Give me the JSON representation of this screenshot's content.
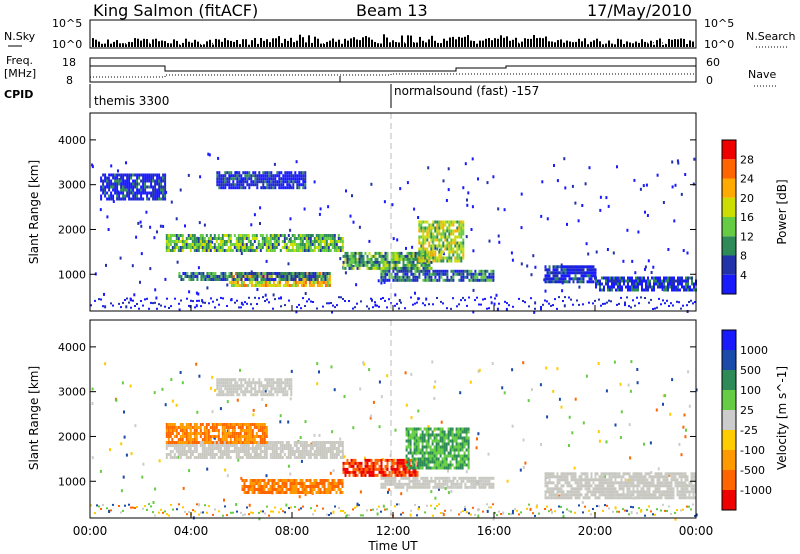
{
  "header": {
    "station": "King Salmon (fitACF)",
    "beam": "Beam 13",
    "date": "17/May/2010"
  },
  "noise_panel": {
    "left_label": "N.Sky",
    "right_label": "N.Search",
    "left_ticks": [
      "10^5",
      "10^0"
    ],
    "right_ticks": [
      "10^5",
      "10^0"
    ]
  },
  "freq_panel": {
    "left_label_line1": "Freq.",
    "left_label_line2": "[MHz]",
    "right_label": "Nave",
    "left_ticks": [
      "18",
      "8"
    ],
    "right_ticks": [
      "60",
      "0"
    ]
  },
  "cpid_panel": {
    "label": "CPID",
    "program_1": "themis 3300",
    "program_2": "normalsound (fast) -157"
  },
  "colors": {
    "power": [
      "#1a1aff",
      "#2233aa",
      "#2e8b57",
      "#66cc44",
      "#ccdd00",
      "#ffaa00",
      "#ff6600",
      "#ee0000"
    ],
    "velocity": [
      "#ee0000",
      "#ff6600",
      "#ff9900",
      "#ffcc00",
      "#cccccc",
      "#66cc44",
      "#2e8b57",
      "#1a4aaa",
      "#1a1aff"
    ],
    "ground_scatter": "#c8c8c0"
  },
  "chart_data": [
    {
      "type": "heatmap",
      "panel": "power",
      "ylabel": "Slant Range [km]",
      "colorbar_label": "Power [dB]",
      "colorbar_ticks": [
        "4",
        "8",
        "12",
        "16",
        "20",
        "24",
        "28"
      ],
      "ylim": [
        180,
        4600
      ],
      "yticks": [
        "1000",
        "2000",
        "3000",
        "4000"
      ],
      "xlim_hours": [
        0,
        24
      ],
      "regions": [
        {
          "t": [
            0.4,
            3.0
          ],
          "r": [
            2700,
            3250
          ],
          "level": 1
        },
        {
          "t": [
            3.0,
            10.0
          ],
          "r": [
            1550,
            1900
          ],
          "level": 3
        },
        {
          "t": [
            5.5,
            9.5
          ],
          "r": [
            750,
            1050
          ],
          "level": 5
        },
        {
          "t": [
            3.5,
            9.5
          ],
          "r": [
            900,
            1050
          ],
          "level": 2
        },
        {
          "t": [
            10.0,
            13.5
          ],
          "r": [
            1100,
            1500
          ],
          "level": 3
        },
        {
          "t": [
            13.0,
            14.8
          ],
          "r": [
            1300,
            2200
          ],
          "level": 4
        },
        {
          "t": [
            11.5,
            16.0
          ],
          "r": [
            850,
            1100
          ],
          "level": 2
        },
        {
          "t": [
            18.0,
            20.0
          ],
          "r": [
            800,
            1200
          ],
          "level": 1
        },
        {
          "t": [
            20.0,
            24.0
          ],
          "r": [
            650,
            950
          ],
          "level": 1
        },
        {
          "t": [
            5.0,
            8.5
          ],
          "r": [
            2950,
            3300
          ],
          "level": 1
        }
      ]
    },
    {
      "type": "heatmap",
      "panel": "velocity",
      "ylabel": "Slant Range [km]",
      "colorbar_label": "Velocity [m s^-1]",
      "colorbar_ticks": [
        "-1000",
        "-500",
        "-100",
        "-25",
        "25",
        "100",
        "500",
        "1000"
      ],
      "ylim": [
        180,
        4600
      ],
      "yticks": [
        "1000",
        "2000",
        "3000",
        "4000"
      ],
      "xlim_hours": [
        0,
        24
      ],
      "xticks": [
        "00:00",
        "04:00",
        "08:00",
        "12:00",
        "16:00",
        "20:00",
        "00:00"
      ],
      "xlabel": "Time UT",
      "regions": [
        {
          "t": [
            3.0,
            10.0
          ],
          "r": [
            1500,
            1900
          ],
          "level": "ground"
        },
        {
          "t": [
            3.0,
            7.0
          ],
          "r": [
            1850,
            2300
          ],
          "level": 2
        },
        {
          "t": [
            6.0,
            10.0
          ],
          "r": [
            750,
            1050
          ],
          "level": 2
        },
        {
          "t": [
            10.0,
            13.0
          ],
          "r": [
            1100,
            1500
          ],
          "level": 1
        },
        {
          "t": [
            12.5,
            15.0
          ],
          "r": [
            1300,
            2200
          ],
          "level": 6
        },
        {
          "t": [
            11.5,
            16.0
          ],
          "r": [
            850,
            1100
          ],
          "level": "ground"
        },
        {
          "t": [
            18.0,
            24.0
          ],
          "r": [
            650,
            1200
          ],
          "level": "ground"
        },
        {
          "t": [
            5.0,
            8.0
          ],
          "r": [
            2950,
            3300
          ],
          "level": "ground"
        }
      ]
    }
  ]
}
